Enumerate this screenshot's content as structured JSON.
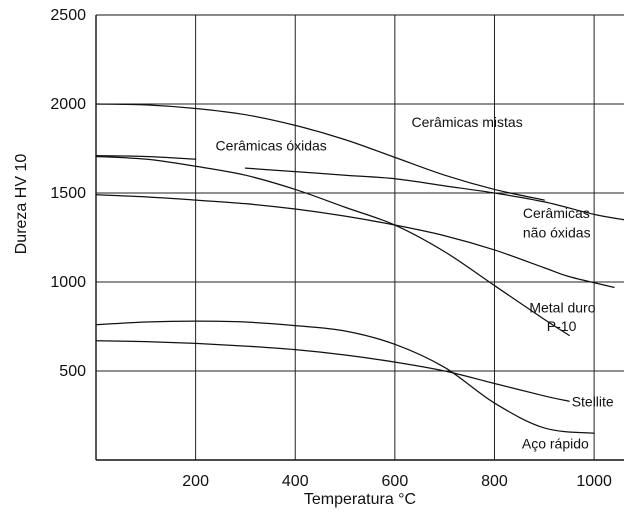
{
  "chart_data": {
    "type": "line",
    "title": "",
    "xlabel": "Temperatura °C",
    "ylabel": "Dureza HV 10",
    "xlim": [
      0,
      1060
    ],
    "ylim": [
      0,
      2500
    ],
    "x_ticks": [
      200,
      400,
      600,
      800,
      1000
    ],
    "y_ticks": [
      500,
      1000,
      1500,
      2000,
      2500
    ],
    "grid": true,
    "series": [
      {
        "name": "Cerâmicas mistas",
        "points": [
          [
            0,
            2000
          ],
          [
            100,
            1995
          ],
          [
            200,
            1975
          ],
          [
            300,
            1940
          ],
          [
            400,
            1880
          ],
          [
            500,
            1800
          ],
          [
            600,
            1700
          ],
          [
            700,
            1600
          ],
          [
            800,
            1520
          ],
          [
            900,
            1460
          ]
        ]
      },
      {
        "name": "Cerâmicas óxidas",
        "points": [
          [
            300,
            1640
          ],
          [
            400,
            1620
          ],
          [
            500,
            1600
          ],
          [
            600,
            1580
          ],
          [
            700,
            1540
          ],
          [
            800,
            1500
          ],
          [
            900,
            1450
          ],
          [
            1000,
            1380
          ],
          [
            1060,
            1350
          ]
        ]
      },
      {
        "name": "Cerâmicas óxidas",
        "points": [
          [
            0,
            1710
          ],
          [
            100,
            1705
          ],
          [
            200,
            1690
          ]
        ]
      },
      {
        "name": "",
        "points": [
          [
            0,
            1705
          ],
          [
            100,
            1690
          ],
          [
            200,
            1650
          ],
          [
            300,
            1600
          ],
          [
            400,
            1520
          ],
          [
            500,
            1420
          ],
          [
            600,
            1320
          ],
          [
            700,
            1170
          ],
          [
            800,
            980
          ],
          [
            900,
            790
          ],
          [
            950,
            700
          ]
        ]
      },
      {
        "name": "Cerâmicas não óxidas",
        "points": [
          [
            0,
            1490
          ],
          [
            100,
            1478
          ],
          [
            200,
            1460
          ],
          [
            300,
            1440
          ],
          [
            400,
            1410
          ],
          [
            500,
            1370
          ],
          [
            600,
            1320
          ],
          [
            700,
            1260
          ],
          [
            800,
            1180
          ],
          [
            900,
            1080
          ],
          [
            950,
            1030
          ],
          [
            1040,
            970
          ]
        ]
      },
      {
        "name": "Metal duro P-10",
        "points": [
          [
            0,
            760
          ],
          [
            100,
            775
          ],
          [
            200,
            780
          ],
          [
            300,
            775
          ],
          [
            400,
            755
          ],
          [
            500,
            725
          ],
          [
            600,
            650
          ],
          [
            700,
            520
          ],
          [
            800,
            320
          ],
          [
            900,
            180
          ],
          [
            1000,
            150
          ]
        ]
      },
      {
        "name": "Stellite",
        "points": [
          [
            0,
            670
          ],
          [
            100,
            665
          ],
          [
            200,
            655
          ],
          [
            300,
            640
          ],
          [
            400,
            620
          ],
          [
            500,
            590
          ],
          [
            600,
            550
          ],
          [
            700,
            500
          ],
          [
            800,
            430
          ],
          [
            900,
            360
          ],
          [
            950,
            330
          ]
        ]
      }
    ],
    "labels": [
      {
        "text": "Cerâmicas mistas",
        "x": 745,
        "y": 1870,
        "anchor": "middle"
      },
      {
        "text": "Cerâmicas óxidas",
        "x": 240,
        "y": 1740,
        "anchor": "start"
      },
      {
        "text": "Cerâmicas",
        "x": 857,
        "y": 1360,
        "anchor": "start"
      },
      {
        "text": "não óxidas",
        "x": 857,
        "y": 1250,
        "anchor": "start"
      },
      {
        "text": "Metal duro",
        "x": 870,
        "y": 830,
        "anchor": "start"
      },
      {
        "text": "P-10",
        "x": 905,
        "y": 725,
        "anchor": "start"
      },
      {
        "text": "Stellite",
        "x": 955,
        "y": 300,
        "anchor": "start"
      },
      {
        "text": "Aço rápido",
        "x": 855,
        "y": 65,
        "anchor": "start"
      }
    ]
  }
}
